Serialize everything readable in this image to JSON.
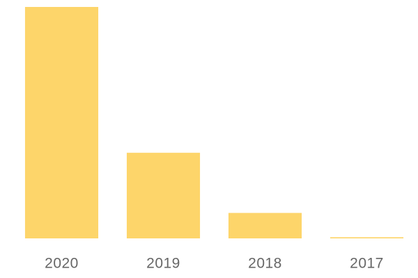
{
  "chart_data": {
    "type": "bar",
    "categories": [
      "2020",
      "2019",
      "2018",
      "2017"
    ],
    "values": [
      100,
      37,
      11,
      0.5
    ],
    "color": "#fdd56a",
    "ylim": [
      0,
      100
    ]
  }
}
